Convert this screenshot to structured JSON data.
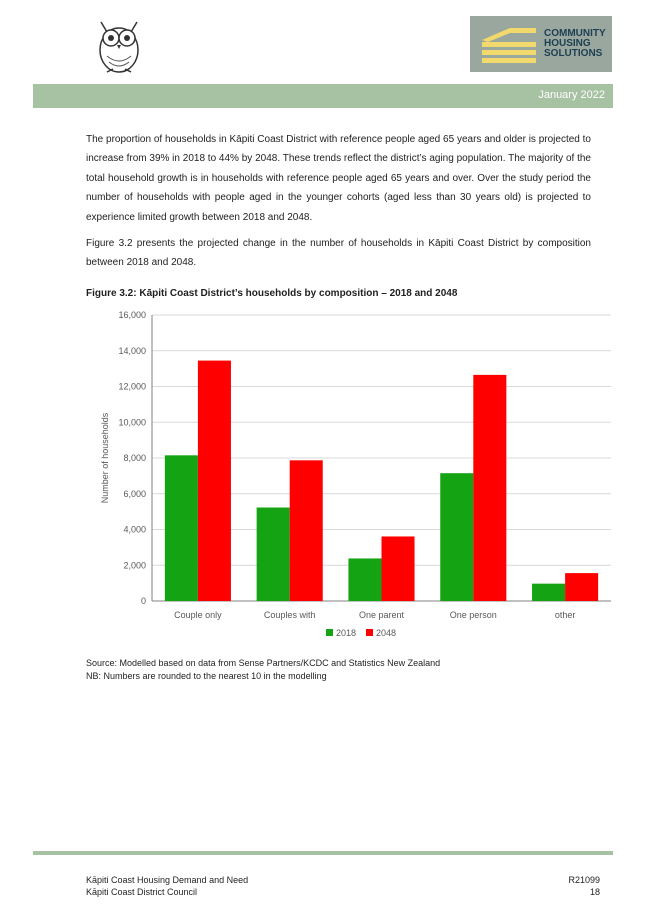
{
  "header": {
    "logo_lines": [
      "COMMUNITY",
      "HOUSING",
      "SOLUTIONS"
    ],
    "date": "January 2022",
    "band_color": "#a7c1a3"
  },
  "body": {
    "paragraph1": "The proportion of households in Kāpiti Coast District with reference people aged 65 years and older is projected to increase from 39% in 2018 to 44% by 2048.  These trends reflect the district’s aging population.  The majority of the total household growth is in households with reference people aged 65 years and over.  Over the study period the number of households with people aged in the younger cohorts (aged less than 30 years old) is projected to experience limited growth between 2018 and 2048.",
    "paragraph2": "Figure 3.2 presents the projected change in the number of households in Kāpiti Coast District by composition between 2018 and 2048.",
    "figure_caption": "Figure 3.2:  Kāpiti Coast District’s households by composition – 2018 and 2048",
    "source": "Source:  Modelled based on data from Sense Partners/KCDC and Statistics New Zealand",
    "note": "NB:  Numbers are rounded to the nearest 10 in the modelling"
  },
  "chart_data": {
    "type": "bar",
    "categories": [
      "Couple only",
      "Couples with",
      "One parent",
      "One person",
      "other"
    ],
    "series": [
      {
        "name": "2018",
        "color": "#13a313",
        "values": [
          8150,
          5230,
          2380,
          7150,
          970
        ]
      },
      {
        "name": "2048",
        "color": "#ff0000",
        "values": [
          13450,
          7870,
          3610,
          12650,
          1560
        ]
      }
    ],
    "ylabel": "Number of households",
    "xlabel": "",
    "ylim": [
      0,
      16000
    ],
    "yticks": [
      "0",
      "2,000",
      "4,000",
      "6,000",
      "8,000",
      "10,000",
      "12,000",
      "14,000",
      "16,000"
    ],
    "grid": true,
    "legend_position": "bottom"
  },
  "footer": {
    "left_line1": "Kāpiti Coast Housing Demand and Need",
    "left_line2": "Kāpiti Coast District Council",
    "right_line1": "R21099",
    "right_line2": "18"
  }
}
